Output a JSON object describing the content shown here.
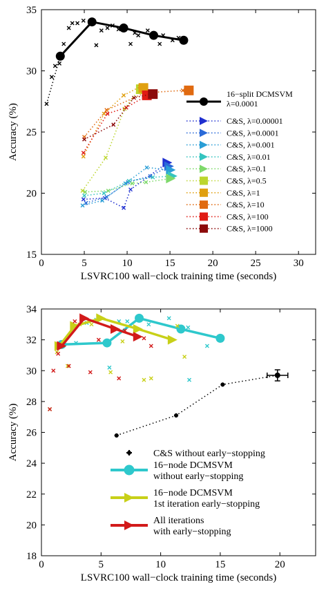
{
  "chart_data": [
    {
      "type": "scatter",
      "title": "",
      "xlabel": "LSVRC100 wall−clock training time (seconds)",
      "ylabel": "Accuracy (%)",
      "xlim": [
        0,
        32
      ],
      "ylim": [
        15,
        35
      ],
      "xticks": [
        0,
        5,
        10,
        15,
        20,
        25,
        30
      ],
      "yticks": [
        15,
        20,
        25,
        30,
        35
      ],
      "grid": false,
      "legend_position": "right",
      "series": [
        {
          "name": "16−split DCMSVM\nλ=0.0001",
          "color": "#000000",
          "style": "line-marker",
          "marker": "circle",
          "x": [
            2.2,
            5.9,
            9.6,
            13.1,
            16.6
          ],
          "y": [
            31.2,
            34.0,
            33.5,
            32.9,
            32.5
          ],
          "points_x": [
            0.6,
            1.2,
            1.6,
            2.1,
            2.6,
            3.2,
            3.6,
            4.2,
            4.9,
            6.4,
            7.0,
            7.7,
            8.3,
            9.0,
            10.4,
            10.9,
            11.3,
            12.4,
            13.8,
            14.2,
            15.3,
            16.0,
            16.8
          ],
          "points_y": [
            27.3,
            29.5,
            30.4,
            30.6,
            32.2,
            33.5,
            33.9,
            33.9,
            34.1,
            32.1,
            33.3,
            33.5,
            33.7,
            33.4,
            32.2,
            33.1,
            32.9,
            33.3,
            32.2,
            32.9,
            32.5,
            32.7,
            32.4
          ]
        },
        {
          "name": "C&S, λ=0.00001",
          "color": "#1f2fd0",
          "marker": "triangle-right",
          "final": [
            14.7,
            22.5
          ],
          "x": [
            4.9,
            7.4,
            9.6,
            10.4
          ],
          "y": [
            19.5,
            19.6,
            18.8,
            20.3
          ]
        },
        {
          "name": "C&S, λ=0.0001",
          "color": "#2a6ad8",
          "marker": "triangle-right",
          "final": [
            14.9,
            22.2
          ],
          "x": [
            5.2,
            7.6,
            10.1,
            12.7
          ],
          "y": [
            19.2,
            19.7,
            20.9,
            21.4
          ]
        },
        {
          "name": "C&S, λ=0.001",
          "color": "#2a9ed6",
          "marker": "triangle-right",
          "final": [
            15.1,
            21.9
          ],
          "x": [
            4.8,
            7.1,
            9.8,
            12.3
          ],
          "y": [
            19.0,
            19.4,
            20.8,
            22.1
          ]
        },
        {
          "name": "C&S, λ=0.01",
          "color": "#35c4bf",
          "marker": "triangle-right",
          "final": [
            15.3,
            21.4
          ],
          "x": [
            5.0,
            7.3,
            10.2,
            13.0
          ],
          "y": [
            19.8,
            20.0,
            21.0,
            21.3
          ]
        },
        {
          "name": "C&S, λ=0.1",
          "color": "#7ed96b",
          "marker": "triangle-right",
          "final": [
            15.1,
            21.2
          ],
          "x": [
            5.1,
            7.8,
            10.6,
            12.2
          ],
          "y": [
            20.1,
            20.2,
            20.8,
            20.9
          ]
        },
        {
          "name": "C&S, λ=0.5",
          "color": "#bcd62e",
          "marker": "square",
          "final": [
            11.6,
            28.5
          ],
          "x": [
            4.8,
            7.5,
            9.7,
            11.3
          ],
          "y": [
            20.2,
            22.9,
            26.9,
            28.4
          ]
        },
        {
          "name": "C&S, λ=1",
          "color": "#e0a010",
          "marker": "square",
          "final": [
            11.9,
            28.6
          ],
          "x": [
            4.9,
            7.3,
            9.6,
            11.5
          ],
          "y": [
            23.0,
            26.5,
            28.0,
            28.7
          ]
        },
        {
          "name": "C&S, λ=10",
          "color": "#e06a10",
          "marker": "square",
          "final": [
            17.2,
            28.4
          ],
          "x": [
            5.0,
            7.6,
            12.1,
            16.5
          ],
          "y": [
            24.6,
            26.8,
            28.2,
            28.4
          ]
        },
        {
          "name": "C&S, λ=100",
          "color": "#e01b14",
          "marker": "square",
          "final": [
            12.3,
            28.0
          ],
          "x": [
            4.9,
            7.7,
            9.9,
            12.1
          ],
          "y": [
            23.3,
            26.5,
            27.0,
            27.9
          ]
        },
        {
          "name": "C&S, λ=1000",
          "color": "#8c0a0a",
          "marker": "square",
          "final": [
            13.0,
            28.1
          ],
          "x": [
            5.0,
            8.4,
            10.8,
            12.8
          ],
          "y": [
            24.4,
            25.6,
            27.8,
            28.1
          ]
        }
      ]
    },
    {
      "type": "scatter",
      "title": "",
      "xlabel": "LSVRC100 wall−clock training time (seconds)",
      "ylabel": "Accuracy (%)",
      "xlim": [
        0,
        23
      ],
      "ylim": [
        18,
        34
      ],
      "xticks": [
        0,
        5,
        10,
        15,
        20
      ],
      "yticks": [
        18,
        20,
        22,
        24,
        26,
        28,
        30,
        32,
        34
      ],
      "grid": false,
      "legend_position": "bottom-right",
      "series": [
        {
          "name": "C&S without early−stopping",
          "color": "#000000",
          "marker": "plus",
          "x": [
            6.3,
            11.3,
            15.2,
            19.8
          ],
          "y": [
            25.8,
            27.1,
            29.1,
            29.7
          ],
          "final": [
            19.8,
            29.7
          ]
        },
        {
          "name": "16−node DCMSVM\nwithout early−stopping",
          "color": "#2ec8cc",
          "marker": "circle",
          "x": [
            1.7,
            5.5,
            8.2,
            11.7,
            15.0
          ],
          "y": [
            31.7,
            31.8,
            33.4,
            32.7,
            32.1
          ],
          "points_x": [
            0.7,
            1.9,
            2.9,
            3.8,
            4.6,
            5.7,
            6.5,
            7.2,
            9.0,
            10.7,
            12.3,
            12.4,
            13.9,
            15.1
          ],
          "points_y": [
            27.5,
            31.7,
            31.8,
            33.1,
            33.3,
            30.2,
            33.2,
            33.2,
            33.0,
            33.4,
            32.8,
            29.4,
            31.6,
            32.2
          ]
        },
        {
          "name": "16−node DCMSVM\n1st iteration early−stopping",
          "color": "#c8d018",
          "marker": "triangle-right",
          "x": [
            1.5,
            2.8,
            5.0,
            8.1,
            11.0
          ],
          "y": [
            31.6,
            32.9,
            33.4,
            32.7,
            32.0
          ],
          "points_x": [
            0.7,
            1.3,
            2.2,
            3.2,
            4.2,
            5.8,
            6.8,
            8.6,
            9.2,
            11.4,
            12.0
          ],
          "points_y": [
            27.5,
            31.2,
            30.3,
            33.0,
            33.0,
            29.9,
            31.9,
            29.4,
            29.5,
            32.9,
            30.9
          ]
        },
        {
          "name": "All iterations\nwith early−stopping",
          "color": "#d21a1a",
          "marker": "triangle-right",
          "x": [
            1.7,
            3.6,
            6.2,
            8.1
          ],
          "y": [
            31.6,
            33.4,
            32.7,
            32.2
          ],
          "points_x": [
            0.7,
            1.0,
            1.4,
            2.3,
            2.8,
            4.1,
            4.8,
            6.5,
            7.0,
            8.6,
            9.2
          ],
          "points_y": [
            27.5,
            30.0,
            31.1,
            30.3,
            33.2,
            29.9,
            32.0,
            29.5,
            32.6,
            32.1,
            31.6
          ]
        }
      ]
    }
  ]
}
